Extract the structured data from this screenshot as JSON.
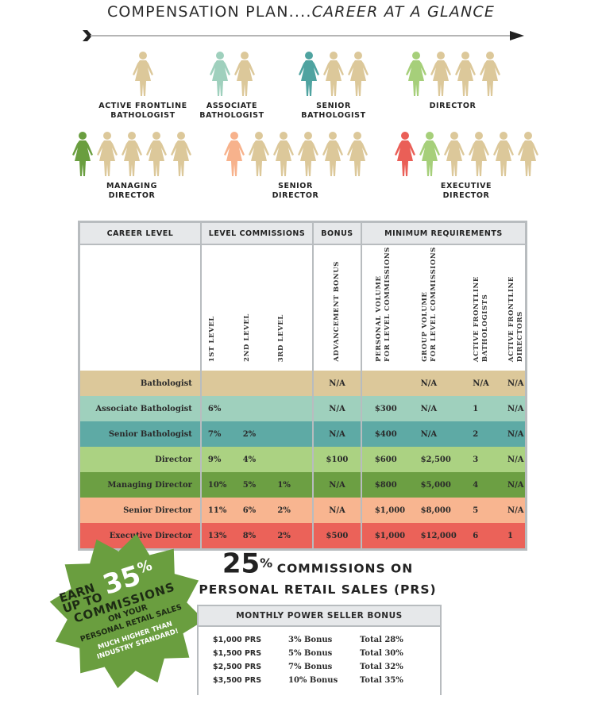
{
  "header": {
    "title_main": "COMPENSATION PLAN....",
    "title_italic": "CAREER AT A GLANCE"
  },
  "colors": {
    "tan": "#dcc89a",
    "mint": "#9fd0bd",
    "teal": "#4fa3a0",
    "light_green": "#a6cf7a",
    "dark_green": "#6a9e3f",
    "peach": "#f7b28c",
    "red": "#ea5f57",
    "header_gray": "#e6e8ea",
    "border_gray": "#b8bcbf"
  },
  "career_path": [
    {
      "label": "ACTIVE FRONTLINE\nBATHOLOGIST",
      "figures": [
        "#dcc89a"
      ]
    },
    {
      "label": "ASSOCIATE\nBATHOLOGIST",
      "figures": [
        "#9fd0bd",
        "#dcc89a"
      ]
    },
    {
      "label": "SENIOR\nBATHOLOGIST",
      "figures": [
        "#4fa3a0",
        "#dcc89a",
        "#dcc89a"
      ]
    },
    {
      "label": "DIRECTOR",
      "figures": [
        "#a6cf7a",
        "#dcc89a",
        "#dcc89a",
        "#dcc89a"
      ]
    },
    {
      "label": "MANAGING\nDIRECTOR",
      "figures": [
        "#6a9e3f",
        "#dcc89a",
        "#dcc89a",
        "#dcc89a",
        "#dcc89a"
      ]
    },
    {
      "label": "SENIOR\nDIRECTOR",
      "figures": [
        "#f7b28c",
        "#dcc89a",
        "#dcc89a",
        "#dcc89a",
        "#dcc89a",
        "#dcc89a"
      ]
    },
    {
      "label": "EXECUTIVE\nDIRECTOR",
      "figures": [
        "#ea5f57",
        "#a6cf7a",
        "#dcc89a",
        "#dcc89a",
        "#dcc89a",
        "#dcc89a"
      ]
    }
  ],
  "table": {
    "groups": {
      "career_level": "CAREER LEVEL",
      "level_commissions": "LEVEL COMMISSIONS",
      "bonus": "BONUS",
      "minimum_requirements": "MINIMUM REQUIREMENTS"
    },
    "subheaders": {
      "level1": "1ST LEVEL",
      "level2": "2ND LEVEL",
      "level3": "3RD LEVEL",
      "advancement_bonus": "ADVANCEMENT BONUS",
      "personal_volume": "PERSONAL VOLUME\nFOR LEVEL COMMISSIONS",
      "group_volume": "GROUP VOLUME\nFOR LEVEL COMMISSIONS",
      "active_bathologists": "ACTIVE FRONTLINE\nBATHOLOGISTS",
      "active_directors": "ACTIVE FRONTLINE\nDIRECTORS"
    },
    "rows": [
      {
        "level": "Bathologist",
        "color": "#dcc89a",
        "l1": "",
        "l2": "",
        "l3": "",
        "bonus": "N/A",
        "pv": "",
        "gv": "N/A",
        "afb": "N/A",
        "afd": "N/A"
      },
      {
        "level": "Associate Bathologist",
        "color": "#9fd0bd",
        "l1": "6%",
        "l2": "",
        "l3": "",
        "bonus": "N/A",
        "pv": "$300",
        "gv": "N/A",
        "afb": "1",
        "afd": "N/A"
      },
      {
        "level": "Senior Bathologist",
        "color": "#5eaaa5",
        "l1": "7%",
        "l2": "2%",
        "l3": "",
        "bonus": "N/A",
        "pv": "$400",
        "gv": "N/A",
        "afb": "2",
        "afd": "N/A"
      },
      {
        "level": "Director",
        "color": "#abd282",
        "l1": "9%",
        "l2": "4%",
        "l3": "",
        "bonus": "$100",
        "pv": "$600",
        "gv": "$2,500",
        "afb": "3",
        "afd": "N/A"
      },
      {
        "level": "Managing Director",
        "color": "#6c9f43",
        "l1": "10%",
        "l2": "5%",
        "l3": "1%",
        "bonus": "N/A",
        "pv": "$800",
        "gv": "$5,000",
        "afb": "4",
        "afd": "N/A"
      },
      {
        "level": "Senior Director",
        "color": "#f8b590",
        "l1": "11%",
        "l2": "6%",
        "l3": "2%",
        "bonus": "N/A",
        "pv": "$1,000",
        "gv": "$8,000",
        "afb": "5",
        "afd": "N/A"
      },
      {
        "level": "Executive Director",
        "color": "#eb6259",
        "l1": "13%",
        "l2": "8%",
        "l3": "2%",
        "bonus": "$500",
        "pv": "$1,000",
        "gv": "$12,000",
        "afb": "6",
        "afd": "1"
      }
    ]
  },
  "badge": {
    "earn": "EARN",
    "up_to": "UP TO",
    "percent": "35",
    "percent_sign": "%",
    "commissions": "COMMISSIONS",
    "on_your": "ON YOUR",
    "prs": "PERSONAL RETAIL SALES",
    "much_higher": "MUCH HIGHER THAN",
    "industry": "INDUSTRY STANDARD!"
  },
  "prs_headline": {
    "percent": "25",
    "percent_sign": "%",
    "line1": "COMMISSIONS ON",
    "line2": "PERSONAL RETAIL SALES (PRS)"
  },
  "power_seller": {
    "title": "MONTHLY POWER SELLER BONUS",
    "rows": [
      {
        "prs": "$1,000 PRS",
        "bonus": "3% Bonus",
        "total": "Total 28%"
      },
      {
        "prs": "$1,500 PRS",
        "bonus": "5% Bonus",
        "total": "Total 30%"
      },
      {
        "prs": "$2,500 PRS",
        "bonus": "7% Bonus",
        "total": "Total 32%"
      },
      {
        "prs": "$3,500 PRS",
        "bonus": "10% Bonus",
        "total": "Total 35%"
      }
    ]
  }
}
